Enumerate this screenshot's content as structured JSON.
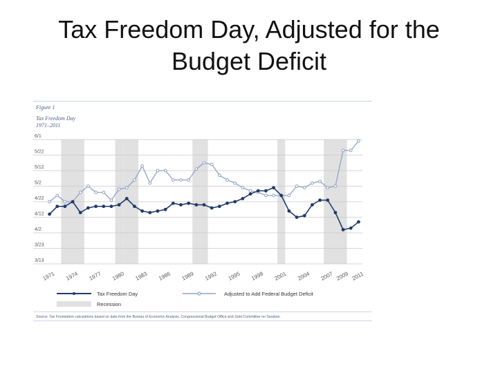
{
  "slide": {
    "title_line1": "Tax Freedom Day, Adjusted for the",
    "title_line2": "Budget Deficit"
  },
  "figure": {
    "label": "Figure 1",
    "title": "Tax Freedom Day",
    "subtitle": "1971–2011",
    "source": "Source: Tax Foundation calculations based on data from the Bureau of Economic Analysis, Congressional Budget Office and Joint Committee on Taxation."
  },
  "colors": {
    "tfd_line": "#1f3b6b",
    "adjusted_line": "#8fa3c4",
    "recession": "#e1e1e1",
    "gridline": "#c8c8c8",
    "frame": "#cfd7e3",
    "header_text": "#4a5d80"
  },
  "chart_data": {
    "type": "line",
    "x_tick_labels": [
      "1971",
      "1974",
      "1977",
      "1980",
      "1983",
      "1986",
      "1989",
      "1992",
      "1995",
      "1998",
      "2001",
      "2004",
      "2007",
      "2009",
      "2011"
    ],
    "x_tick_years": [
      1971,
      1974,
      1977,
      1980,
      1983,
      1986,
      1989,
      1992,
      1995,
      1998,
      2001,
      2004,
      2007,
      2009,
      2011
    ],
    "y_tick_labels": [
      "6/1",
      "5/22",
      "5/12",
      "5/2",
      "4/22",
      "4/12",
      "4/2",
      "3/23",
      "3/13"
    ],
    "ylim_labels": [
      "3/13",
      "6/1"
    ],
    "years": [
      1971,
      1972,
      1973,
      1974,
      1975,
      1976,
      1977,
      1978,
      1979,
      1980,
      1981,
      1982,
      1983,
      1984,
      1985,
      1986,
      1987,
      1988,
      1989,
      1990,
      1991,
      1992,
      1993,
      1994,
      1995,
      1996,
      1997,
      1998,
      1999,
      2000,
      2001,
      2002,
      2003,
      2004,
      2005,
      2006,
      2007,
      2008,
      2009,
      2010,
      2011
    ],
    "series": [
      {
        "name": "Tax Freedom Day",
        "values": [
          "4/14",
          "4/19",
          "4/19",
          "4/22",
          "4/15",
          "4/18",
          "4/19",
          "4/19",
          "4/19",
          "4/20",
          "4/24",
          "4/19",
          "4/16",
          "4/15",
          "4/16",
          "4/17",
          "4/21",
          "4/20",
          "4/21",
          "4/20",
          "4/20",
          "4/18",
          "4/19",
          "4/21",
          "4/22",
          "4/24",
          "4/27",
          "4/29",
          "4/29",
          "5/1",
          "4/26",
          "4/16",
          "4/12",
          "4/13",
          "4/20",
          "4/23",
          "4/23",
          "4/15",
          "4/4",
          "4/5",
          "4/9"
        ]
      },
      {
        "name": "Adjusted to Add Federal Budget Deficit",
        "values": [
          "4/22",
          "4/26",
          "4/22",
          "4/22",
          "4/28",
          "5/2",
          "4/28",
          "4/28",
          "4/23",
          "4/30",
          "5/1",
          "5/6",
          "5/15",
          "5/4",
          "5/12",
          "5/12",
          "5/6",
          "5/6",
          "5/6",
          "5/13",
          "5/17",
          "5/16",
          "5/9",
          "5/6",
          "5/4",
          "5/1",
          "4/29",
          "4/28",
          "4/26",
          "4/26",
          "4/26",
          "4/26",
          "5/2",
          "5/1",
          "5/4",
          "5/5",
          "5/1",
          "5/2",
          "5/25",
          "5/25",
          "5/31"
        ]
      }
    ],
    "recessions": [
      [
        1973,
        1975
      ],
      [
        1980,
        1980
      ],
      [
        1981,
        1982
      ],
      [
        1990,
        1991
      ],
      [
        2001,
        2001
      ],
      [
        2007,
        2009
      ]
    ],
    "legend": [
      "Tax Freedom Day",
      "Adjusted to Add Federal Budget Deficit",
      "Recession"
    ],
    "legend_position": "bottom",
    "grid": "horizontal"
  }
}
